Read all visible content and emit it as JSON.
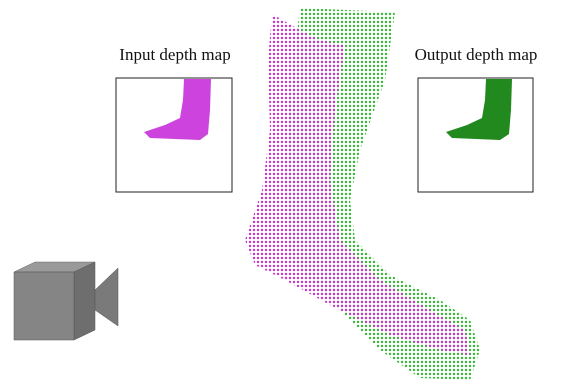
{
  "panels": {
    "input": {
      "label": "Input depth map"
    },
    "output": {
      "label": "Output depth map"
    }
  }
}
